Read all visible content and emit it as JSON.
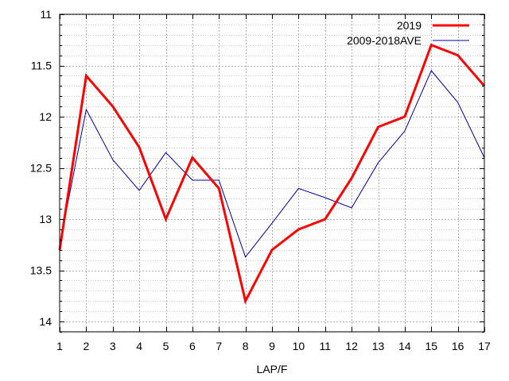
{
  "chart_data": {
    "type": "line",
    "title": "",
    "xlabel": "LAP/F",
    "ylabel": "",
    "x": [
      1,
      2,
      3,
      4,
      5,
      6,
      7,
      8,
      9,
      10,
      11,
      12,
      13,
      14,
      15,
      16,
      17
    ],
    "xlim": [
      1,
      17
    ],
    "ylim": [
      11,
      14.1
    ],
    "y_inverted": true,
    "y_ticks": [
      "11",
      "11.5",
      "12",
      "12.5",
      "13",
      "13.5",
      "14"
    ],
    "x_ticks": [
      "1",
      "2",
      "3",
      "4",
      "5",
      "6",
      "7",
      "8",
      "9",
      "10",
      "11",
      "12",
      "13",
      "14",
      "15",
      "16",
      "17"
    ],
    "grid": "major and minor, dotted",
    "legend_position": "top-right",
    "series": [
      {
        "name": "2019",
        "color": "#ff0000",
        "values": [
          13.3,
          11.6,
          11.9,
          12.3,
          13.0,
          12.4,
          12.7,
          13.8,
          13.3,
          13.1,
          13.0,
          12.6,
          12.1,
          12.0,
          11.3,
          11.4,
          11.7
        ]
      },
      {
        "name": "2009-2018AVE",
        "color": "#0000a0",
        "values": [
          13.25,
          11.93,
          12.42,
          12.72,
          12.35,
          12.62,
          12.62,
          13.37,
          13.04,
          12.7,
          12.79,
          12.89,
          12.45,
          12.14,
          11.55,
          11.86,
          12.4
        ]
      }
    ]
  }
}
